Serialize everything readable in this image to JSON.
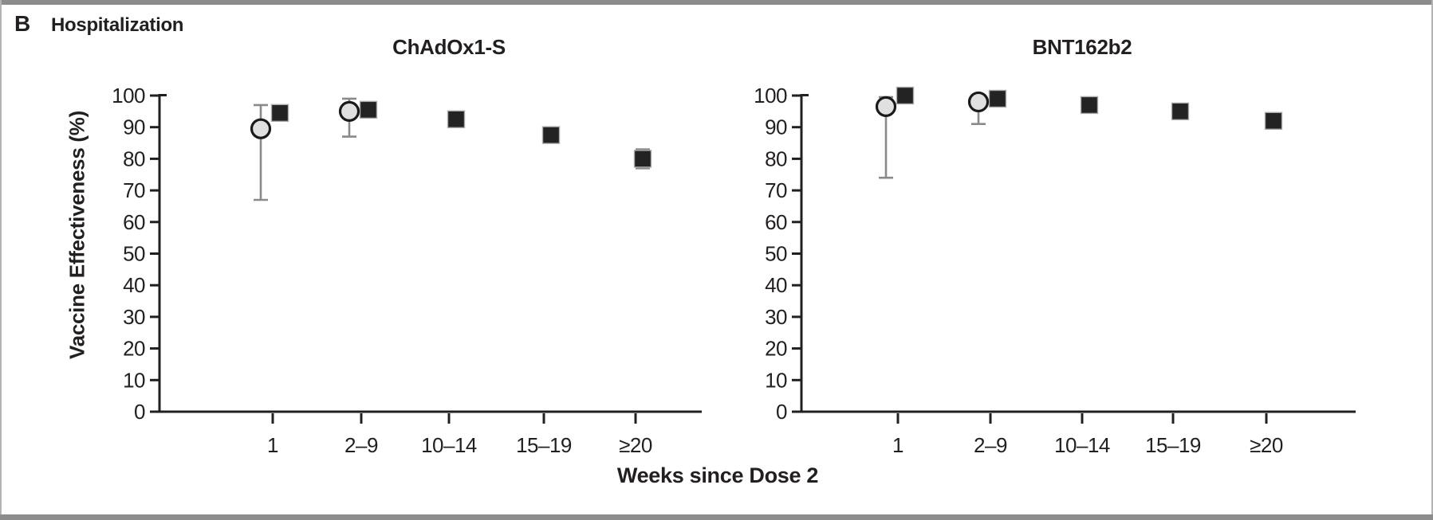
{
  "figure": {
    "panel_label": "B",
    "panel_title": "Hospitalization"
  },
  "chart_data": {
    "type": "scatter",
    "xlabel": "Weeks since Dose 2",
    "ylabel": "Vaccine Effectiveness (%)",
    "ylim": [
      0,
      100
    ],
    "yticks": [
      100,
      90,
      80,
      70,
      60,
      50,
      40,
      30,
      20,
      10,
      0
    ],
    "categories": [
      "1",
      "2–9",
      "10–14",
      "15–19",
      "≥20"
    ],
    "legend_position": "none",
    "grid": false,
    "panels": [
      {
        "title": "ChAdOx1-S",
        "series": [
          {
            "name": "gray-circle-estimates",
            "marker": "circle",
            "points": [
              {
                "category": "1",
                "value": 89.5,
                "ci_low": 67,
                "ci_high": 97
              },
              {
                "category": "2–9",
                "value": 95,
                "ci_low": 87,
                "ci_high": 99
              }
            ]
          },
          {
            "name": "black-square-estimates",
            "marker": "square",
            "points": [
              {
                "category": "1",
                "value": 94.5,
                "ci_low": 92,
                "ci_high": 96.5
              },
              {
                "category": "2–9",
                "value": 95.5
              },
              {
                "category": "10–14",
                "value": 92.5
              },
              {
                "category": "15–19",
                "value": 87.5
              },
              {
                "category": "≥20",
                "value": 80,
                "ci_low": 77,
                "ci_high": 83
              }
            ]
          }
        ]
      },
      {
        "title": "BNT162b2",
        "series": [
          {
            "name": "gray-circle-estimates",
            "marker": "circle",
            "points": [
              {
                "category": "1",
                "value": 96.5,
                "ci_low": 74,
                "ci_high": 99.5
              },
              {
                "category": "2–9",
                "value": 98,
                "ci_low": 91,
                "ci_high": 99.5
              }
            ]
          },
          {
            "name": "black-square-estimates",
            "marker": "square",
            "points": [
              {
                "category": "1",
                "value": 100
              },
              {
                "category": "2–9",
                "value": 99
              },
              {
                "category": "10–14",
                "value": 97
              },
              {
                "category": "15–19",
                "value": 95
              },
              {
                "category": "≥20",
                "value": 92
              }
            ]
          }
        ]
      }
    ],
    "colors": {
      "circle_fill": "#e0e0e0",
      "circle_stroke": "#1a1a1a",
      "square_fill": "#232323",
      "square_stroke": "#ababab",
      "error_bar": "#8a8a8a",
      "axis": "#231f20",
      "frame": "#8c8c8c"
    }
  }
}
